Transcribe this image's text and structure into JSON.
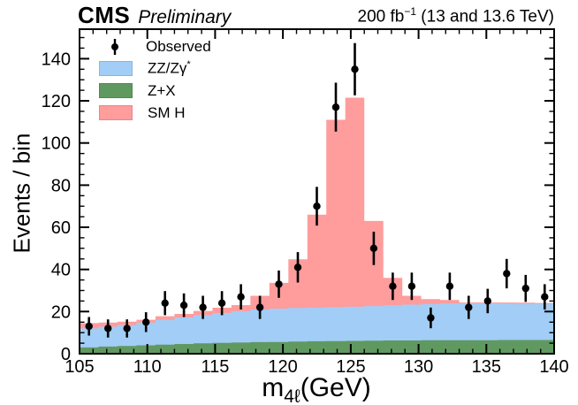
{
  "header": {
    "experiment": "CMS",
    "preliminary": "Preliminary",
    "lumi_value": "200 fb",
    "lumi_exponent": "−1",
    "lumi_energy": " (13 and 13.6 TeV)"
  },
  "axes": {
    "ylabel": "Events / bin",
    "xlabel_base": "m",
    "xlabel_sub": "4ℓ",
    "xlabel_suffix": "(GeV)"
  },
  "legend": {
    "items": [
      {
        "label": "Observed",
        "sup": "",
        "type": "marker",
        "color": "#000000"
      },
      {
        "label": "ZZ/Zγ",
        "sup": "*",
        "type": "box",
        "color": "#a2cdf6"
      },
      {
        "label": "Z+X",
        "sup": "",
        "type": "box",
        "color": "#609960"
      },
      {
        "label": "SM H",
        "sup": "",
        "type": "box",
        "color": "#ff9c9c"
      }
    ]
  },
  "chart_data": {
    "type": "bar",
    "subtype": "stacked-step-histogram-with-data-points",
    "title": "CMS Preliminary",
    "lumi_label": "200 fb⁻¹ (13 and 13.6 TeV)",
    "xlabel": "m_4ℓ (GeV)",
    "ylabel": "Events / bin",
    "xlim": [
      105,
      140
    ],
    "ylim": [
      0,
      154
    ],
    "xticks": [
      105,
      110,
      115,
      120,
      125,
      130,
      135,
      140
    ],
    "yticks": [
      0,
      20,
      40,
      60,
      80,
      100,
      120,
      140
    ],
    "x_minor_step": 1,
    "y_minor_step": 5,
    "grid": false,
    "legend_position": "top-left",
    "bin_edges": [
      105,
      106.4,
      107.8,
      109.2,
      110.6,
      112,
      113.4,
      114.8,
      116.2,
      117.6,
      119,
      120.4,
      121.8,
      123.2,
      124.6,
      126,
      127.4,
      128.8,
      130.2,
      131.6,
      133,
      134.4,
      135.8,
      137.2,
      138.6,
      140
    ],
    "bin_centers": [
      105.7,
      107.1,
      108.5,
      109.9,
      111.3,
      112.7,
      114.1,
      115.5,
      116.9,
      118.3,
      119.7,
      121.1,
      122.5,
      123.9,
      125.3,
      126.7,
      128.1,
      129.5,
      130.9,
      132.3,
      133.7,
      135.1,
      136.5,
      137.9,
      139.3
    ],
    "series": [
      {
        "name": "Z+X",
        "color": "#609960",
        "values": [
          3.0,
          3.4,
          3.7,
          4.0,
          4.3,
          4.6,
          4.9,
          5.1,
          5.3,
          5.5,
          5.6,
          5.8,
          5.9,
          6.0,
          6.1,
          6.2,
          6.3,
          6.3,
          6.4,
          6.4,
          6.4,
          6.4,
          6.5,
          6.5,
          6.5
        ]
      },
      {
        "name": "ZZ/Zγ*",
        "color": "#a2cdf6",
        "values": [
          9.0,
          9.4,
          9.9,
          10.8,
          11.7,
          12.6,
          13.4,
          14.2,
          14.9,
          15.5,
          15.8,
          15.9,
          16.0,
          16.1,
          16.2,
          16.4,
          16.7,
          17.0,
          17.2,
          17.4,
          17.5,
          17.5,
          17.3,
          17.2,
          17.1
        ]
      },
      {
        "name": "SM H",
        "color": "#ff9c9c",
        "values": [
          2.5,
          2.0,
          1.6,
          1.3,
          1.8,
          1.7,
          2.0,
          2.5,
          2.9,
          6.5,
          12.2,
          23.1,
          44.1,
          88.9,
          99.2,
          40.4,
          13.0,
          4.2,
          2.3,
          1.7,
          0.4,
          0.4,
          0.5,
          0.5,
          0.5
        ]
      }
    ],
    "observed": {
      "name": "Observed",
      "color": "#000000",
      "values": [
        13,
        12,
        12,
        15,
        24,
        23,
        22,
        24,
        27,
        22,
        33,
        41,
        70,
        117,
        135,
        50,
        32,
        32,
        17,
        32,
        22,
        25,
        38,
        31,
        27
      ],
      "errors": [
        4.4,
        4.3,
        4.3,
        4.7,
        5.7,
        5.6,
        5.5,
        5.7,
        6.0,
        5.5,
        6.5,
        7.2,
        9.2,
        11.6,
        12.4,
        7.9,
        6.5,
        6.5,
        4.9,
        6.5,
        5.5,
        5.8,
        7.0,
        6.4,
        6.0
      ]
    }
  }
}
